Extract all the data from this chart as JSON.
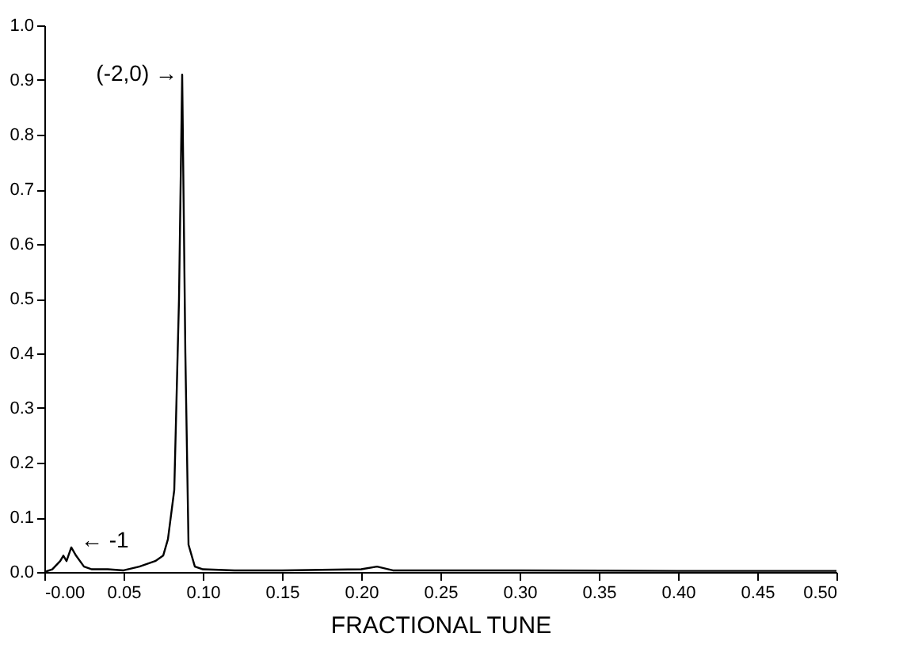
{
  "chart_data": {
    "type": "line",
    "xlabel": "FRACTIONAL TUNE",
    "x": [
      0.0,
      0.005,
      0.01,
      0.012,
      0.014,
      0.017,
      0.02,
      0.025,
      0.03,
      0.04,
      0.05,
      0.06,
      0.07,
      0.075,
      0.078,
      0.082,
      0.085,
      0.087,
      0.089,
      0.091,
      0.093,
      0.095,
      0.1,
      0.12,
      0.15,
      0.2,
      0.21,
      0.22,
      0.3,
      0.4,
      0.5
    ],
    "series": [
      {
        "color": "#000000",
        "values": [
          0.0,
          0.005,
          0.02,
          0.03,
          0.02,
          0.045,
          0.03,
          0.01,
          0.005,
          0.005,
          0.003,
          0.01,
          0.02,
          0.03,
          0.06,
          0.15,
          0.5,
          0.91,
          0.4,
          0.05,
          0.03,
          0.01,
          0.005,
          0.003,
          0.003,
          0.005,
          0.01,
          0.003,
          0.003,
          0.002,
          0.002
        ]
      }
    ],
    "xlim": [
      0,
      0.5
    ],
    "ylim": [
      0,
      1.0
    ],
    "xticks": [
      {
        "value": 0,
        "label": "-0.00"
      },
      {
        "value": 0.05,
        "label": "0.05"
      },
      {
        "value": 0.1,
        "label": "0.10"
      },
      {
        "value": 0.15,
        "label": "0.15"
      },
      {
        "value": 0.2,
        "label": "0.20"
      },
      {
        "value": 0.25,
        "label": "0.25"
      },
      {
        "value": 0.3,
        "label": "0.30"
      },
      {
        "value": 0.35,
        "label": "0.35"
      },
      {
        "value": 0.4,
        "label": "0.40"
      },
      {
        "value": 0.45,
        "label": "0.45"
      },
      {
        "value": 0.5,
        "label": "0.50"
      }
    ],
    "yticks": [
      {
        "value": 0,
        "label": "0.0"
      },
      {
        "value": 0.1,
        "label": "0.1"
      },
      {
        "value": 0.2,
        "label": "0.2"
      },
      {
        "value": 0.3,
        "label": "0.3"
      },
      {
        "value": 0.4,
        "label": "0.4"
      },
      {
        "value": 0.5,
        "label": "0.5"
      },
      {
        "value": 0.6,
        "label": "0.6"
      },
      {
        "value": 0.7,
        "label": "0.7"
      },
      {
        "value": 0.8,
        "label": "0.8"
      },
      {
        "value": 0.9,
        "label": "0.9"
      },
      {
        "value": 1.0,
        "label": "1.0"
      }
    ],
    "annotations": [
      {
        "text": "(-2,0) →",
        "x": 0.087,
        "y": 0.91
      },
      {
        "text": "← -1",
        "x": 0.017,
        "y": 0.045
      }
    ],
    "grid": false,
    "marker": "none",
    "line_style": "solid"
  }
}
